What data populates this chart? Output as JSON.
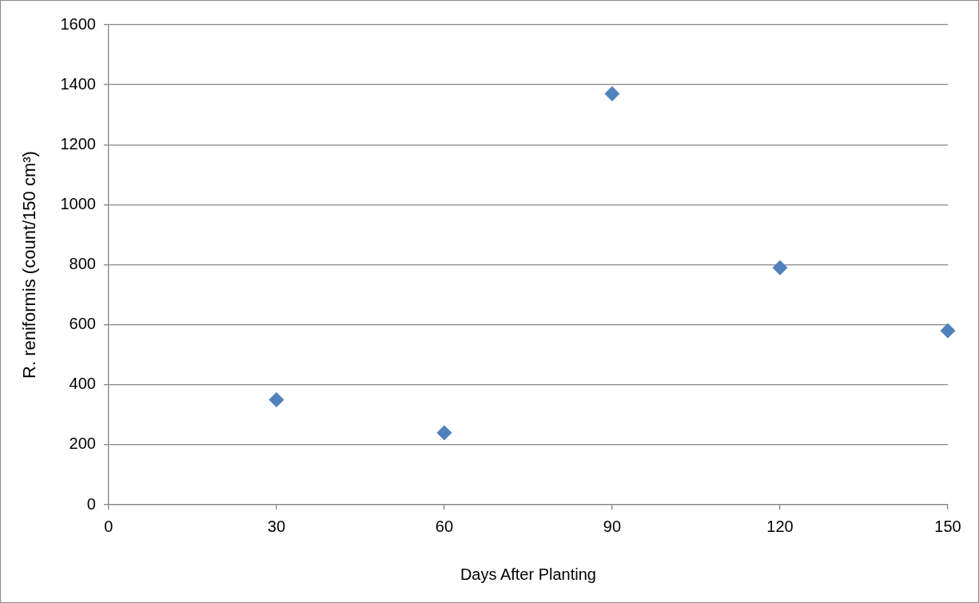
{
  "chart_data": {
    "type": "scatter",
    "xlabel": "Days After Planting",
    "ylabel": "R. reniformis (count/150 cm³)",
    "x": [
      30,
      60,
      90,
      120,
      150
    ],
    "series": [
      {
        "color": "#4f81bd",
        "values": [
          350,
          240,
          1370,
          790,
          580
        ]
      }
    ],
    "xlim": [
      0,
      150
    ],
    "xticks": [
      0,
      30,
      60,
      90,
      120,
      150
    ],
    "ylim": [
      0,
      1600
    ],
    "yticks": [
      0,
      200,
      400,
      600,
      800,
      1000,
      1200,
      1400,
      1600
    ],
    "grid": "y",
    "marker": "diamond",
    "legend": false
  }
}
